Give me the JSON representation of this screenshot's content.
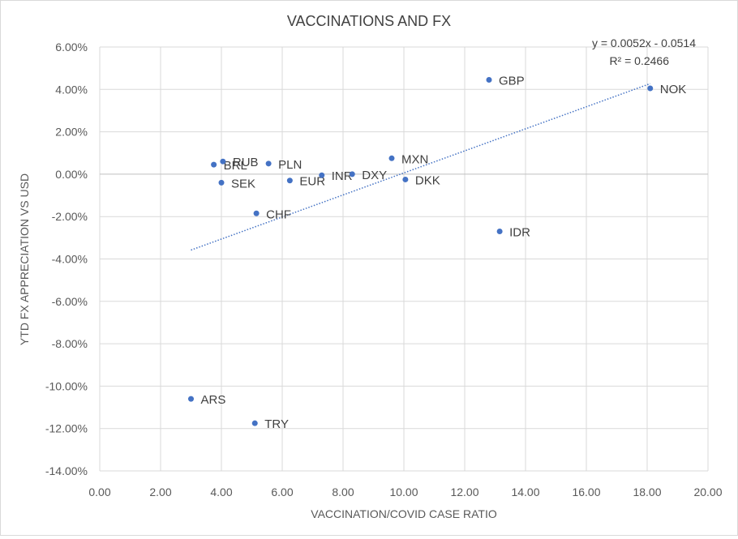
{
  "chart_data": {
    "type": "scatter",
    "title": "VACCINATIONS AND FX",
    "xlabel": "VACCINATION/COVID CASE RATIO",
    "ylabel": "YTD FX APPRECIATION VS USD",
    "xlim": [
      0,
      20
    ],
    "ylim": [
      -0.14,
      0.06
    ],
    "x_ticks": [
      0,
      2,
      4,
      6,
      8,
      10,
      12,
      14,
      16,
      18,
      20
    ],
    "y_ticks": [
      -0.14,
      -0.12,
      -0.1,
      -0.08,
      -0.06,
      -0.04,
      -0.02,
      0.0,
      0.02,
      0.04,
      0.06
    ],
    "x_tick_labels": [
      "0.00",
      "2.00",
      "4.00",
      "6.00",
      "8.00",
      "10.00",
      "12.00",
      "14.00",
      "16.00",
      "18.00",
      "20.00"
    ],
    "y_tick_labels": [
      "-14.00%",
      "-12.00%",
      "-10.00%",
      "-8.00%",
      "-6.00%",
      "-4.00%",
      "-2.00%",
      "0.00%",
      "2.00%",
      "4.00%",
      "6.00%"
    ],
    "grid": true,
    "point_color": "#4472c4",
    "points": [
      {
        "label": "BRL",
        "x": 3.75,
        "y": 0.0045
      },
      {
        "label": "RUB",
        "x": 4.05,
        "y": 0.006
      },
      {
        "label": "SEK",
        "x": 4.0,
        "y": -0.004
      },
      {
        "label": "PLN",
        "x": 5.55,
        "y": 0.005
      },
      {
        "label": "CHF",
        "x": 5.15,
        "y": -0.0185
      },
      {
        "label": "EUR",
        "x": 6.25,
        "y": -0.003
      },
      {
        "label": "INR",
        "x": 7.3,
        "y": -0.0005
      },
      {
        "label": "DXY",
        "x": 8.3,
        "y": 0.0
      },
      {
        "label": "MXN",
        "x": 9.6,
        "y": 0.0075
      },
      {
        "label": "DKK",
        "x": 10.05,
        "y": -0.0025
      },
      {
        "label": "GBP",
        "x": 12.8,
        "y": 0.0445
      },
      {
        "label": "IDR",
        "x": 13.15,
        "y": -0.027
      },
      {
        "label": "NOK",
        "x": 18.1,
        "y": 0.0405
      },
      {
        "label": "ARS",
        "x": 3.0,
        "y": -0.106
      },
      {
        "label": "TRY",
        "x": 5.1,
        "y": -0.1175
      }
    ],
    "trendline": {
      "type": "linear",
      "slope": 0.0052,
      "intercept": -0.0514,
      "x_range": [
        3.0,
        18.1
      ],
      "equation": "y = 0.0052x - 0.0514",
      "r_squared": "R² = 0.2466",
      "color": "#4472c4"
    }
  }
}
